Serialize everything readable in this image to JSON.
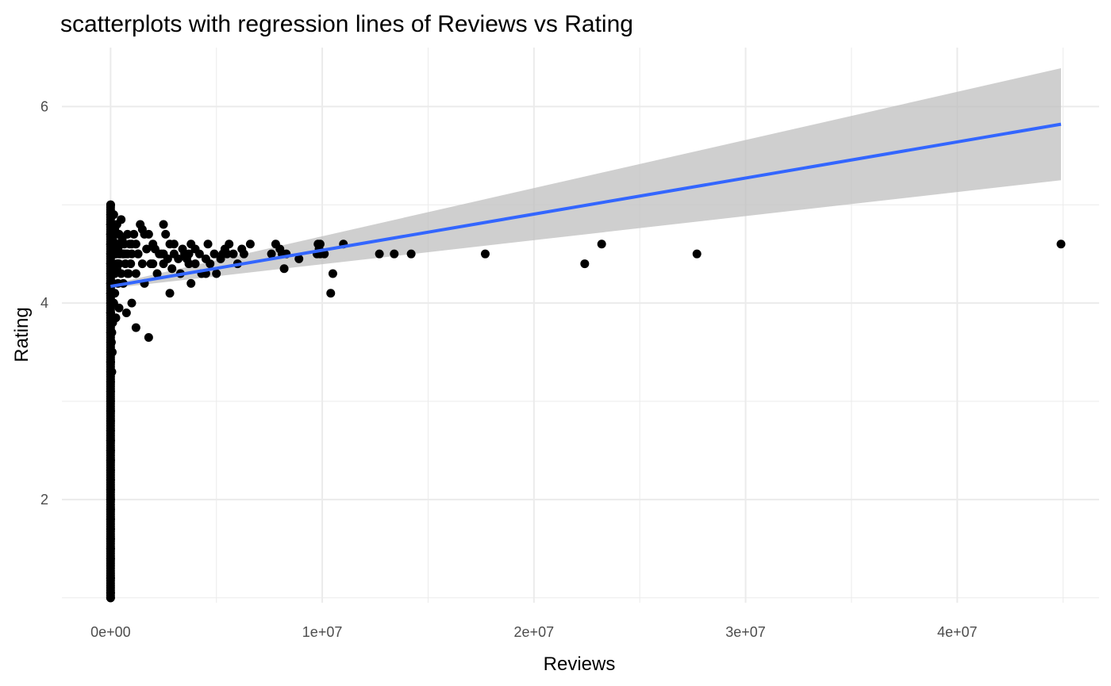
{
  "chart_data": {
    "type": "scatter",
    "title": "scatterplots with regression lines of Reviews vs Rating",
    "xlabel": "Reviews",
    "ylabel": "Rating",
    "xlim": [
      -2300000,
      46700000
    ],
    "ylim": [
      0.95,
      6.6
    ],
    "x_ticks": [
      0,
      10000000,
      20000000,
      30000000,
      40000000
    ],
    "x_tick_labels": [
      "0e+00",
      "1e+07",
      "2e+07",
      "3e+07",
      "4e+07"
    ],
    "x_minor_ticks": [
      5000000,
      15000000,
      25000000,
      35000000,
      45000000
    ],
    "y_ticks": [
      2,
      4,
      6
    ],
    "y_tick_labels": [
      "2",
      "4",
      "6"
    ],
    "y_minor_ticks": [
      1,
      3,
      5
    ],
    "grid": true,
    "colors": {
      "points": "#000000",
      "regression_line": "#3366ff",
      "confidence_band": "#bfbfbf",
      "grid": "#ebebeb"
    },
    "regression": {
      "x": [
        0,
        44900000
      ],
      "y": [
        4.17,
        5.82
      ],
      "band_x": [
        0,
        44900000
      ],
      "band_lower": [
        4.15,
        5.25
      ],
      "band_upper": [
        4.19,
        6.39
      ]
    },
    "points": {
      "x": [
        44900000,
        27700000,
        23200000,
        22400000,
        17700000,
        14200000,
        13400000,
        12700000,
        11000000,
        10500000,
        10400000,
        10100000,
        9900000,
        9900000,
        9850000,
        9800000,
        9750000,
        8900000,
        8300000,
        8200000,
        8100000,
        8000000,
        7800000,
        7600000,
        6600000,
        6300000,
        6200000,
        6000000,
        5800000,
        5600000,
        5500000,
        5400000,
        5300000,
        5200000,
        5000000,
        4900000,
        4700000,
        4600000,
        4500000,
        4300000,
        4200000,
        4000000,
        3800000,
        3800000,
        3700000,
        3700000,
        3600000,
        3500000,
        3400000,
        3300000,
        3200000,
        3000000,
        2900000,
        2800000,
        2800000,
        2700000,
        2600000,
        2500000,
        2500000,
        2400000,
        2300000,
        2200000,
        2100000,
        2000000,
        1900000,
        1800000,
        1800000,
        1700000,
        1600000,
        1500000,
        1500000,
        1400000,
        1300000,
        1200000,
        1200000,
        1200000,
        1100000,
        1000000,
        1000000,
        950000,
        900000,
        850000,
        800000,
        800000,
        750000,
        700000,
        650000,
        600000,
        600000,
        550000,
        500000,
        500000,
        450000,
        400000,
        400000,
        400000,
        350000,
        350000,
        300000,
        300000,
        300000,
        250000,
        250000,
        200000,
        200000,
        200000,
        150000,
        150000,
        150000,
        100000,
        100000,
        100000,
        80000,
        60000,
        50000,
        40000,
        30000,
        20000,
        10000,
        5000,
        2000,
        1000,
        500,
        100,
        20,
        0,
        5,
        12,
        30,
        60,
        200,
        1000,
        3000,
        8000,
        15000,
        25000,
        40000,
        60000,
        90000,
        120000,
        180000,
        250000,
        350000,
        450000,
        600000,
        800000,
        1000000,
        1300000,
        1600000,
        2000000,
        2500000,
        3000000,
        3500000,
        4000000,
        4500000,
        50,
        150,
        500,
        1200,
        2500,
        5000,
        9000,
        15000,
        30000,
        50000,
        80000,
        120000,
        200000,
        300000,
        400000,
        500000,
        700000,
        0,
        0,
        0,
        0,
        0,
        0,
        0,
        0,
        0,
        0,
        0,
        0,
        0,
        0,
        0,
        0,
        0,
        0,
        0,
        0,
        0,
        0,
        0,
        0,
        0,
        0,
        0,
        0,
        0,
        0,
        0,
        0,
        0,
        0,
        0,
        0,
        0,
        0,
        0,
        0
      ],
      "y": [
        4.6,
        4.5,
        4.6,
        4.4,
        4.5,
        4.5,
        4.5,
        4.5,
        4.6,
        4.3,
        4.1,
        4.5,
        4.6,
        4.5,
        4.55,
        4.6,
        4.5,
        4.45,
        4.5,
        4.35,
        4.5,
        4.55,
        4.6,
        4.5,
        4.6,
        4.5,
        4.55,
        4.4,
        4.5,
        4.6,
        4.5,
        4.55,
        4.5,
        4.45,
        4.3,
        4.5,
        4.4,
        4.6,
        4.45,
        4.3,
        4.5,
        4.55,
        4.2,
        4.6,
        4.5,
        4.4,
        4.45,
        4.5,
        4.55,
        4.3,
        4.45,
        4.5,
        4.35,
        4.1,
        4.6,
        4.45,
        4.7,
        4.8,
        4.4,
        4.5,
        4.5,
        4.3,
        4.55,
        4.6,
        4.4,
        3.65,
        4.7,
        4.55,
        4.2,
        4.75,
        4.4,
        4.8,
        4.5,
        3.75,
        4.6,
        4.3,
        4.7,
        4.5,
        4.0,
        4.4,
        4.6,
        4.3,
        4.5,
        4.7,
        3.9,
        4.4,
        4.6,
        4.5,
        4.2,
        4.65,
        4.3,
        4.85,
        4.5,
        3.95,
        4.4,
        4.7,
        4.2,
        4.55,
        4.6,
        4.8,
        4.35,
        3.85,
        4.5,
        4.1,
        4.75,
        4.3,
        4.9,
        4.0,
        4.6,
        4.4,
        3.8,
        4.65,
        3.5,
        3.3,
        4.7,
        3.6,
        4.8,
        4.3,
        4.9,
        5.0,
        4.7,
        4.1,
        4.6,
        4.4,
        3.9,
        4.2,
        3.7,
        4.5,
        4.8,
        4.0,
        3.4,
        4.6,
        4.3,
        4.7,
        4.1,
        4.5,
        4.4,
        3.7,
        4.6,
        4.2,
        4.7,
        4.5,
        4.4,
        4.6,
        4.5,
        4.3,
        4.6,
        4.5,
        4.7,
        4.4,
        4.5,
        4.6,
        4.5,
        4.4,
        4.3,
        4.1,
        3.9,
        4.7,
        4.2,
        4.8,
        4.6,
        4.3,
        4.0,
        4.5,
        4.7,
        4.4,
        4.6,
        4.5,
        4.4,
        4.5,
        4.6,
        4.5,
        1.0,
        1.05,
        1.2,
        1.4,
        1.5,
        1.6,
        1.7,
        1.8,
        1.9,
        2.0,
        2.1,
        2.2,
        2.3,
        2.4,
        2.5,
        2.6,
        2.7,
        2.8,
        2.9,
        3.0,
        3.1,
        3.2,
        3.3,
        3.4,
        3.5,
        3.6,
        3.7,
        3.8,
        3.9,
        4.0,
        4.1,
        4.2,
        4.3,
        4.4,
        4.5,
        4.6,
        4.7,
        4.8,
        4.9,
        5.0
      ]
    }
  }
}
